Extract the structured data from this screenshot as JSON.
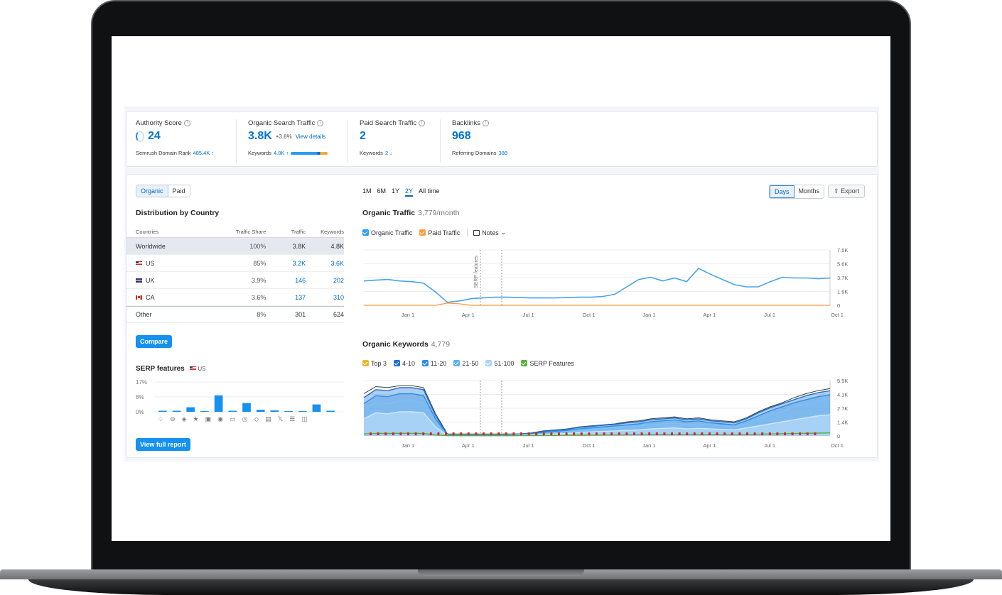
{
  "summary": {
    "authority": {
      "title": "Authority Score",
      "value": "24",
      "sub_label": "Semrush Domain Rank",
      "sub_value": "485.4K ↑"
    },
    "organic": {
      "title": "Organic Search Traffic",
      "value": "3.8K",
      "change": "+3.8%",
      "link": "View details",
      "sub_label": "Keywords",
      "sub_value": "4.8K ↑"
    },
    "paid": {
      "title": "Paid Search Traffic",
      "value": "2",
      "sub_label": "Keywords",
      "sub_value": "2 ↓"
    },
    "backlinks": {
      "title": "Backlinks",
      "value": "968",
      "sub_label": "Referring Domains",
      "sub_value": "388"
    }
  },
  "toggle": {
    "organic": "Organic",
    "paid": "Paid"
  },
  "distribution": {
    "title": "Distribution by Country",
    "headers": {
      "countries": "Countries",
      "share": "Traffic Share",
      "traffic": "Traffic",
      "keywords": "Keywords"
    },
    "rows": [
      {
        "name": "Worldwide",
        "share": "100%",
        "share_frac": 1.0,
        "traffic": "3.8K",
        "keywords": "4.8K",
        "flag": ""
      },
      {
        "name": "US",
        "share": "85%",
        "share_frac": 0.85,
        "traffic": "3.2K",
        "keywords": "3.6K",
        "flag": "us"
      },
      {
        "name": "UK",
        "share": "3.9%",
        "share_frac": 0.039,
        "traffic": "146",
        "keywords": "202",
        "flag": "uk"
      },
      {
        "name": "CA",
        "share": "3.6%",
        "share_frac": 0.036,
        "traffic": "137",
        "keywords": "310",
        "flag": "ca"
      },
      {
        "name": "Other",
        "share": "8%",
        "share_frac": 0.08,
        "traffic": "301",
        "keywords": "624",
        "flag": ""
      }
    ],
    "compare": "Compare"
  },
  "serp": {
    "title": "SERP features",
    "country": "US",
    "yticks": [
      "17%",
      "8%",
      "0%"
    ],
    "view_full": "View full report",
    "icons": [
      "review-icon",
      "link-icon",
      "featured-snippet-icon",
      "star-icon",
      "image-icon",
      "video-icon",
      "faq-icon",
      "local-pack-icon",
      "knowledge-icon",
      "news-icon",
      "x-icon",
      "list-icon",
      "carousel-icon"
    ],
    "icon_glyphs": [
      "♤",
      "⊖",
      "◈",
      "★",
      "▣",
      "◉",
      "▭",
      "◎",
      "◇",
      "▤",
      "𝕏",
      "☰",
      "◫"
    ]
  },
  "periods": [
    "1M",
    "6M",
    "1Y",
    "2Y",
    "All time"
  ],
  "active_period": "2Y",
  "view_toggle": {
    "days": "Days",
    "months": "Months"
  },
  "export": "Export",
  "organic_traffic": {
    "title": "Organic Traffic",
    "subtitle": "3,779/month",
    "legend": {
      "organic": "Organic Traffic",
      "paid": "Paid Traffic",
      "notes": "Notes"
    },
    "annotation": "SERP features"
  },
  "organic_keywords": {
    "title": "Organic Keywords",
    "subtitle": "4,779",
    "legend": [
      "Top 3",
      "4-10",
      "11-20",
      "21-50",
      "51-100",
      "SERP Features"
    ]
  },
  "colors": {
    "accent": "#1591ef",
    "organic": "#4aa3e8",
    "paid": "#ff9a3a",
    "top3": "#f0b429",
    "k410": "#1b6fd1",
    "k1120": "#2b8ee6",
    "k2150": "#5cb1f2",
    "k51100": "#a8d6fa",
    "serp": "#52b339"
  },
  "chart_data": [
    {
      "type": "bar",
      "title": "SERP features",
      "categories": [
        "review",
        "link",
        "featured-snippet",
        "star",
        "image",
        "video",
        "faq",
        "local-pack",
        "knowledge",
        "news",
        "x",
        "list",
        "carousel"
      ],
      "values": [
        0.6,
        0.6,
        2.6,
        0,
        9.4,
        0.4,
        5.0,
        1.2,
        0.8,
        0,
        0,
        4.2,
        0.4
      ],
      "ylim": [
        0,
        17
      ],
      "ylabel": "%"
    },
    {
      "type": "line",
      "title": "Organic Traffic",
      "x_ticks": [
        "Jan 1",
        "Apr 1",
        "Jul 1",
        "Oct 1",
        "Jan 1",
        "Apr 1",
        "Jul 1",
        "Oct 1"
      ],
      "y_ticks": [
        "7.5K",
        "5.6K",
        "3.7K",
        "1.9K",
        "0"
      ],
      "ylim": [
        0,
        7500
      ],
      "series": [
        {
          "name": "Organic Traffic",
          "values": [
            3300,
            3400,
            3500,
            3300,
            3200,
            3000,
            1800,
            400,
            600,
            900,
            1000,
            1100,
            1100,
            1050,
            1000,
            1000,
            1000,
            1050,
            1100,
            1100,
            1200,
            1500,
            2500,
            3500,
            3800,
            3300,
            3700,
            3200,
            5000,
            4200,
            3500,
            2800,
            2500,
            2500,
            3200,
            3800,
            3700,
            3700,
            3600,
            3700
          ]
        },
        {
          "name": "Paid Traffic",
          "values": [
            0,
            0,
            0,
            0,
            0,
            0,
            0,
            300,
            200,
            0,
            0,
            0,
            0,
            0,
            0,
            0,
            0,
            0,
            0,
            0,
            0,
            0,
            0,
            0,
            0,
            0,
            0,
            0,
            0,
            0,
            0,
            0,
            0,
            0,
            0,
            0,
            0,
            0,
            0,
            0
          ]
        }
      ]
    },
    {
      "type": "area",
      "title": "Organic Keywords",
      "x_ticks": [
        "Jan 1",
        "Apr 1",
        "Jul 1",
        "Oct 1",
        "Jan 1",
        "Apr 1",
        "Jul 1",
        "Oct 1"
      ],
      "y_ticks": [
        "5.5K",
        "4.1K",
        "2.7K",
        "1.4K",
        "0"
      ],
      "ylim": [
        0,
        5500
      ],
      "series": [
        {
          "name": "Top 3",
          "values": [
            4200,
            4900,
            4800,
            5000,
            5000,
            4800,
            2200,
            200,
            200,
            200,
            200,
            200,
            200,
            200,
            300,
            500,
            600,
            700,
            900,
            1000,
            1100,
            1200,
            1400,
            1500,
            1700,
            1800,
            1900,
            1700,
            1800,
            1600,
            1500,
            1400,
            1800,
            2400,
            2900,
            3300,
            3800,
            4200,
            4500,
            4700
          ]
        },
        {
          "name": "4-10",
          "values": [
            3800,
            4600,
            4500,
            4800,
            4800,
            4600,
            2000,
            150,
            150,
            150,
            150,
            150,
            150,
            200,
            250,
            450,
            550,
            650,
            850,
            950,
            1050,
            1150,
            1300,
            1400,
            1600,
            1700,
            1800,
            1600,
            1700,
            1500,
            1400,
            1300,
            1700,
            2300,
            2800,
            3200,
            3600,
            4000,
            4300,
            4500
          ]
        },
        {
          "name": "11-20",
          "values": [
            3200,
            4000,
            3900,
            4200,
            4200,
            4000,
            1700,
            100,
            100,
            100,
            100,
            100,
            100,
            150,
            200,
            350,
            450,
            550,
            700,
            800,
            900,
            1000,
            1100,
            1200,
            1400,
            1500,
            1600,
            1400,
            1500,
            1300,
            1200,
            1100,
            1500,
            2000,
            2500,
            2900,
            3300,
            3600,
            3900,
            4100
          ]
        },
        {
          "name": "21-50",
          "values": [
            2600,
            3300,
            3200,
            3500,
            3500,
            3300,
            1300,
            80,
            80,
            80,
            80,
            80,
            80,
            120,
            150,
            250,
            350,
            400,
            550,
            650,
            700,
            800,
            900,
            1000,
            1100,
            1200,
            1300,
            1100,
            1200,
            1100,
            1000,
            900,
            1200,
            1700,
            2100,
            2500,
            2900,
            3200,
            3500,
            3700
          ]
        },
        {
          "name": "51-100",
          "values": [
            1700,
            2300,
            2200,
            2400,
            2400,
            2300,
            900,
            40,
            40,
            40,
            40,
            40,
            40,
            60,
            80,
            150,
            200,
            250,
            350,
            400,
            450,
            500,
            550,
            600,
            700,
            750,
            800,
            700,
            750,
            700,
            650,
            600,
            800,
            1000,
            1200,
            1400,
            1600,
            1800,
            2000,
            2100
          ]
        },
        {
          "name": "SERP Features",
          "values": [
            200,
            250,
            250,
            260,
            260,
            250,
            100,
            20,
            20,
            20,
            20,
            20,
            20,
            30,
            30,
            40,
            50,
            60,
            70,
            80,
            90,
            100,
            110,
            120,
            130,
            140,
            150,
            140,
            150,
            140,
            130,
            120,
            150,
            180,
            200,
            220,
            240,
            260,
            280,
            300
          ]
        }
      ]
    }
  ]
}
